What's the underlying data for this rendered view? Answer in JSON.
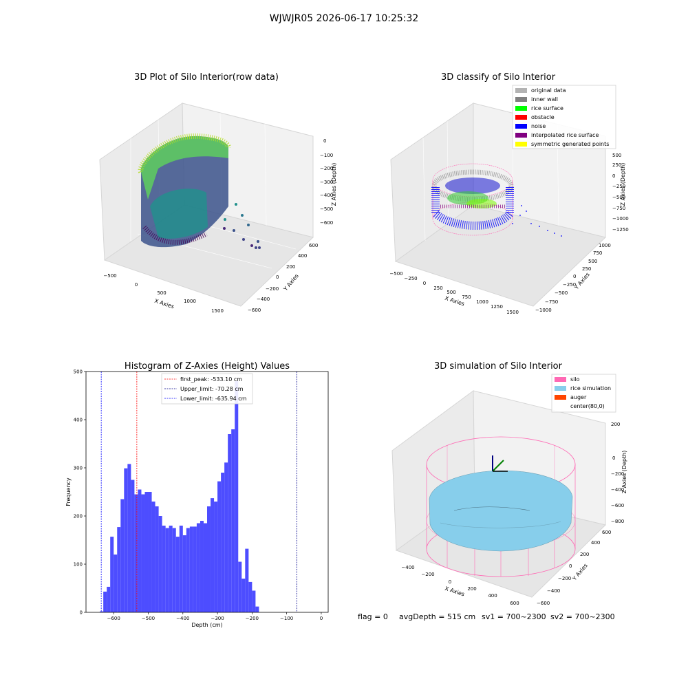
{
  "suptitle": "WJWJR05 2026-06-17 10:25:32",
  "panels": {
    "raw": {
      "title": "3D Plot of Silo Interior(row data)",
      "xlabel": "X Axies",
      "ylabel": "Y Axies",
      "zlabel": "Z Axies (Depth)",
      "xticks": [
        "−500",
        "0",
        "500",
        "1000",
        "1500"
      ],
      "yticks": [
        "−600",
        "−400",
        "−200",
        "0",
        "200",
        "400",
        "600"
      ],
      "zticks": [
        "0",
        "−100",
        "−200",
        "−300",
        "−400",
        "−500",
        "−600"
      ]
    },
    "classify": {
      "title": "3D classify of Silo Interior",
      "xlabel": "X Axies",
      "ylabel": "Y Axies",
      "zlabel": "Z Axies (Depth)",
      "xticks": [
        "−500",
        "−250",
        "0",
        "250",
        "500",
        "750",
        "1000",
        "1250",
        "1500"
      ],
      "yticks": [
        "−1000",
        "−750",
        "−500",
        "−250",
        "0",
        "250",
        "500",
        "750",
        "1000"
      ],
      "zticks": [
        "500",
        "250",
        "0",
        "−250",
        "−500",
        "−750",
        "−1000",
        "−1250"
      ],
      "legend": [
        {
          "label": "original data",
          "color": "#b3b3b3"
        },
        {
          "label": "inner wall",
          "color": "#808080"
        },
        {
          "label": "rice surface",
          "color": "#00ff00"
        },
        {
          "label": "obstacle",
          "color": "#ff0000"
        },
        {
          "label": "noise",
          "color": "#0000ff"
        },
        {
          "label": "interpolated rice surface",
          "color": "#800080"
        },
        {
          "label": "symmetric generated points",
          "color": "#ffff00"
        }
      ]
    },
    "sim": {
      "title": "3D simulation of Silo Interior",
      "xlabel": "X Axies",
      "ylabel": "Y Axies",
      "zlabel": "Z Axies (Depth)",
      "xticks": [
        "−400",
        "−200",
        "0",
        "200",
        "400",
        "600"
      ],
      "yticks": [
        "−600",
        "−400",
        "−200",
        "0",
        "200",
        "400",
        "600"
      ],
      "zticks": [
        "200",
        "0",
        "−200",
        "−400",
        "−600",
        "−800"
      ],
      "legend": [
        {
          "label": "silo",
          "color": "#ff69b4"
        },
        {
          "label": "rice simulation",
          "color": "#87ceeb"
        },
        {
          "label": "auger",
          "color": "#ff4500"
        },
        {
          "label": "center(80,0)",
          "color": "none"
        }
      ]
    }
  },
  "status": {
    "flag": "flag = 0",
    "avg": "avgDepth = 515 cm",
    "sv1": "sv1 = 700~2300",
    "sv2": "sv2 = 700~2300"
  },
  "chart_data": {
    "type": "bar",
    "title": "Histogram of Z-Axies (Height) Values",
    "xlabel": "Depth (cm)",
    "ylabel": "Frequency",
    "xlim": [
      -680,
      20
    ],
    "ylim": [
      0,
      500
    ],
    "xticks": [
      -600,
      -500,
      -400,
      -300,
      -200,
      -100,
      0
    ],
    "yticks": [
      0,
      100,
      200,
      300,
      400,
      500
    ],
    "bin_width": 10,
    "bin_start": -640,
    "values": [
      2,
      43,
      53,
      157,
      120,
      177,
      235,
      299,
      308,
      275,
      245,
      255,
      245,
      250,
      250,
      230,
      220,
      200,
      180,
      175,
      180,
      175,
      157,
      180,
      160,
      175,
      178,
      178,
      185,
      190,
      185,
      220,
      237,
      230,
      272,
      290,
      311,
      370,
      380,
      480,
      105,
      70,
      132,
      63,
      45,
      12
    ],
    "bar_color": "#4d4dff",
    "lines": [
      {
        "label": "first_peak: -533.10 cm",
        "x": -533.1,
        "color": "#ff0000"
      },
      {
        "label": "Upper_limit: -70.28 cm",
        "x": -70.28,
        "color": "#00008b"
      },
      {
        "label": "Lower_limit: -635.94 cm",
        "x": -635.94,
        "color": "#0000ff"
      }
    ],
    "legend_position": "top-center"
  }
}
